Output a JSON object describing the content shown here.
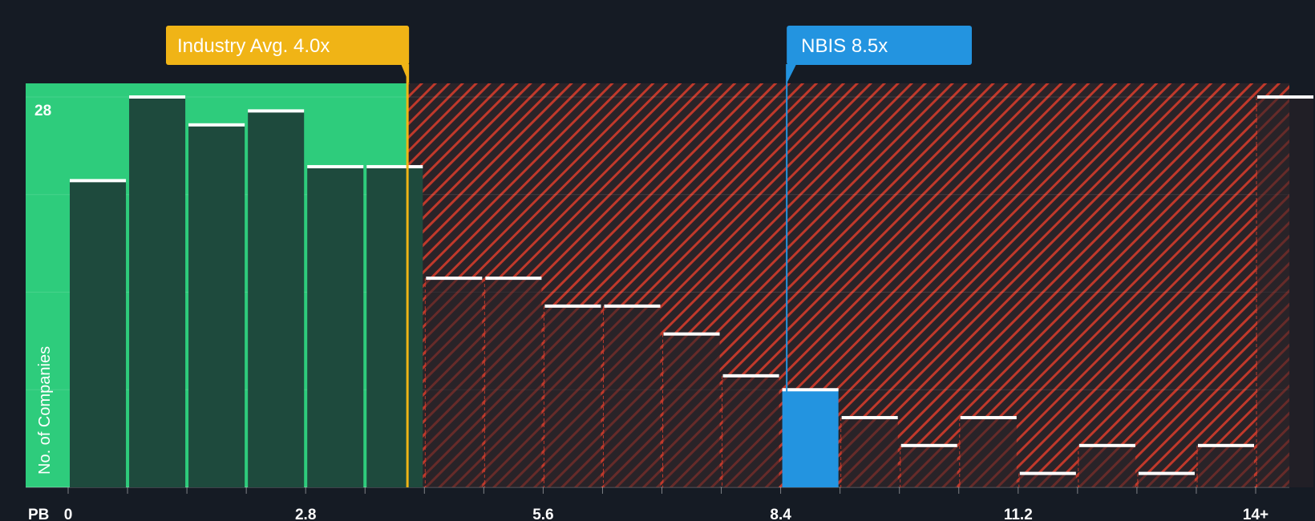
{
  "chart_data": {
    "type": "bar",
    "x_axis_label": "PB",
    "y_axis_label": "No. of Companies",
    "y_tick_label": "28",
    "y_max_value": 28,
    "x_tick_labels": [
      "0",
      "2.8",
      "5.6",
      "8.4",
      "11.2",
      "14+"
    ],
    "bins": [
      {
        "start": 0.0,
        "value": 22
      },
      {
        "start": 0.7,
        "value": 28
      },
      {
        "start": 1.4,
        "value": 26
      },
      {
        "start": 2.1,
        "value": 27
      },
      {
        "start": 2.8,
        "value": 23
      },
      {
        "start": 3.5,
        "value": 23
      },
      {
        "start": 4.2,
        "value": 15
      },
      {
        "start": 4.9,
        "value": 15
      },
      {
        "start": 5.6,
        "value": 13
      },
      {
        "start": 6.3,
        "value": 13
      },
      {
        "start": 7.0,
        "value": 11
      },
      {
        "start": 7.7,
        "value": 8
      },
      {
        "start": 8.4,
        "value": 7
      },
      {
        "start": 9.1,
        "value": 5
      },
      {
        "start": 9.8,
        "value": 3
      },
      {
        "start": 10.5,
        "value": 5
      },
      {
        "start": 11.2,
        "value": 1
      },
      {
        "start": 11.9,
        "value": 3
      },
      {
        "start": 12.6,
        "value": 1
      },
      {
        "start": 13.3,
        "value": 3
      },
      {
        "start": 14.0,
        "value": 28
      }
    ],
    "bin_width": 0.7,
    "highlight_bin_start": 8.4,
    "industry_avg": {
      "label": "Industry Avg. 4.0x",
      "value": 4.0
    },
    "company": {
      "label": "NBIS 8.5x",
      "value": 8.5
    },
    "colors": {
      "background": "#151b24",
      "fair_zone": "#2ecc7c",
      "fair_bar": "#1e4a3d",
      "overvalued_stripe": "#c0392b",
      "overvalued_bar": "#2a2328",
      "highlight_bar": "#2394e0",
      "industry": "#f0b416",
      "company": "#2394e0"
    }
  }
}
